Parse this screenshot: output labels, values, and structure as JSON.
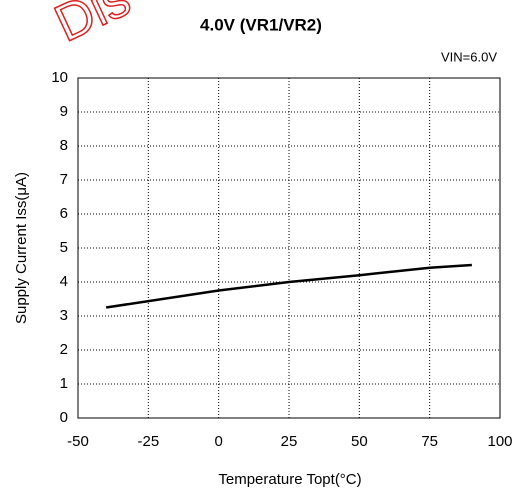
{
  "chart_data": {
    "type": "line",
    "title": "4.0V (VR1/VR2)",
    "annotation": "VIN=6.0V",
    "watermark": "Dis",
    "x_label": "Temperature Topt(°C)",
    "y_label": "Supply Current Iss(μA)",
    "x": [
      -40,
      0,
      25,
      50,
      75,
      90
    ],
    "series": [
      {
        "name": "Supply Current",
        "color": "#000000",
        "values": [
          3.25,
          3.75,
          4.0,
          4.2,
          4.42,
          4.5
        ]
      }
    ],
    "xlim": [
      -50,
      100
    ],
    "xticks": [
      -50,
      -25,
      0,
      25,
      50,
      75,
      100
    ],
    "ylim": [
      0,
      10
    ],
    "yticks": [
      0,
      1,
      2,
      3,
      4,
      5,
      6,
      7,
      8,
      9,
      10
    ],
    "grid": true
  }
}
